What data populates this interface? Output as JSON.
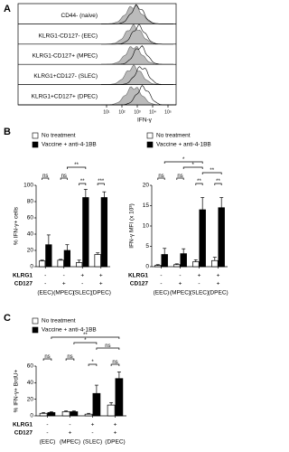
{
  "panel_a": {
    "panel_label": "A",
    "rows": [
      "CD44- (naive)",
      "KLRG1-CD127- (EEC)",
      "KLRG1-CD127+ (MPEC)",
      "KLRG1+CD127- (SLEC)",
      "KLRG1+CD127+ (DPEC)"
    ],
    "x_ticks": [
      "10¹",
      "10²",
      "10³",
      "10⁴",
      "10⁵"
    ],
    "x_label": "IFN-γ"
  },
  "chart_data": [
    {
      "type": "bar",
      "panel_label": "B",
      "ylabel": "% IFN-γ+ cells",
      "categories": [
        "(EEC)",
        "(MPEC)",
        "(SLEC)",
        "(DPEC)"
      ],
      "series": [
        {
          "name": "No treatment",
          "color": "#ffffff",
          "values": [
            7,
            8,
            5,
            15
          ],
          "errors": [
            1,
            1,
            3,
            2
          ]
        },
        {
          "name": "Vaccine + anti-4-1BB",
          "color": "#000000",
          "values": [
            27,
            20,
            85,
            85
          ],
          "errors": [
            12,
            7,
            10,
            7
          ]
        }
      ],
      "ylim": [
        0,
        100
      ],
      "yticks": [
        0,
        20,
        40,
        60,
        80,
        100
      ],
      "row_labels": [
        "KLRG1",
        "CD127"
      ],
      "row_values": [
        [
          "-",
          "-",
          "+",
          "+"
        ],
        [
          "-",
          "+",
          "-",
          "+"
        ]
      ],
      "annotations": [
        "ns",
        "ns",
        "**",
        "**",
        "***"
      ]
    },
    {
      "type": "bar",
      "ylabel": "IFN-γ MFI (x 10³)",
      "categories": [
        "(EEC)",
        "(MPEC)",
        "(SLEC)",
        "(DPEC)"
      ],
      "series": [
        {
          "name": "No treatment",
          "color": "#ffffff",
          "values": [
            0.3,
            0.5,
            1.2,
            1.5
          ],
          "errors": [
            0.2,
            0.2,
            0.5,
            0.8
          ]
        },
        {
          "name": "Vaccine + anti-4-1BB",
          "color": "#000000",
          "values": [
            3,
            3.2,
            14,
            14.5
          ],
          "errors": [
            1.5,
            1.2,
            3,
            2.5
          ]
        }
      ],
      "ylim": [
        0,
        20
      ],
      "yticks": [
        0,
        5,
        10,
        15,
        20
      ],
      "row_labels": [
        "KLRG1",
        "CD127"
      ],
      "row_values": [
        [
          "-",
          "-",
          "+",
          "+"
        ],
        [
          "-",
          "+",
          "-",
          "+"
        ]
      ],
      "annotations": [
        "ns",
        "ns",
        "*",
        "*",
        "**",
        "**",
        "**"
      ]
    },
    {
      "type": "bar",
      "panel_label": "C",
      "ylabel": "% IFN-γ+ BrdU+",
      "categories": [
        "(EEC)",
        "(MPEC)",
        "(SLEC)",
        "(DPEC)"
      ],
      "series": [
        {
          "name": "No treatment",
          "color": "#ffffff",
          "values": [
            3,
            5,
            2,
            13
          ],
          "errors": [
            1,
            1,
            1,
            3
          ]
        },
        {
          "name": "Vaccine + anti-4-1BB",
          "color": "#000000",
          "values": [
            4,
            5,
            27,
            45
          ],
          "errors": [
            1,
            1,
            10,
            8
          ]
        }
      ],
      "ylim": [
        0,
        60
      ],
      "yticks": [
        0,
        20,
        40,
        60
      ],
      "row_labels": [
        "KLRG1",
        "CD127"
      ],
      "row_values": [
        [
          "-",
          "-",
          "+",
          "+"
        ],
        [
          "-",
          "+",
          "-",
          "+"
        ]
      ],
      "annotations": [
        "ns",
        "ns",
        "**",
        "*",
        "ns",
        "*",
        "ns"
      ]
    }
  ]
}
